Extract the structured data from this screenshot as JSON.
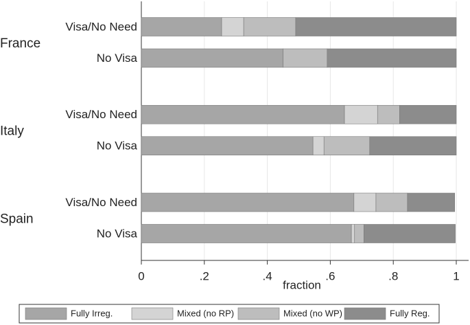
{
  "chart_data": {
    "type": "stacked-barh",
    "groups": [
      "France",
      "Italy",
      "Spain"
    ],
    "categories": [
      "Visa/No Need",
      "No Visa",
      "Visa/No Need",
      "No Visa",
      "Visa/No Need",
      "No Visa"
    ],
    "series": [
      {
        "name": "Fully Irreg.",
        "color": "#a6a6a6",
        "values": [
          0.255,
          0.45,
          0.645,
          0.545,
          0.675,
          0.667
        ]
      },
      {
        "name": "Mixed (no RP)",
        "color": "#d4d4d4",
        "values": [
          0.07,
          0,
          0.105,
          0.035,
          0.07,
          0.01
        ]
      },
      {
        "name": "Mixed (no WP)",
        "color": "#bdbdbd",
        "values": [
          0.165,
          0.14,
          0.07,
          0.145,
          0.1,
          0.03
        ]
      },
      {
        "name": "Fully Reg.",
        "color": "#8c8c8c",
        "values": [
          0.51,
          0.41,
          0.18,
          0.275,
          0.15,
          0.29
        ]
      }
    ],
    "xlabel": "fraction",
    "xlim": [
      0,
      1
    ],
    "xticks": [
      0,
      {
        "value": 0.2,
        "label": ".2"
      },
      {
        "value": 0.4,
        "label": ".4"
      },
      {
        "value": 0.6,
        "label": ".6"
      },
      {
        "value": 0.8,
        "label": ".8"
      },
      1
    ],
    "grid": true,
    "legend": "bottom"
  }
}
